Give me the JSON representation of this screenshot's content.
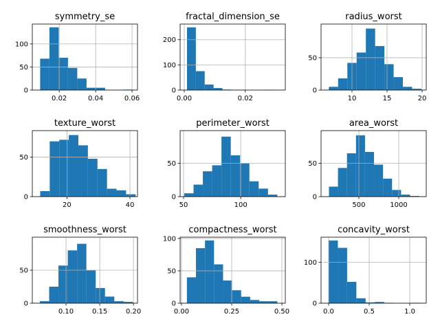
{
  "chart_data": [
    {
      "type": "histogram",
      "title": "symmetry_se",
      "color": "#1f77b4",
      "grid": true,
      "bins": [
        0.0095,
        0.0146,
        0.0197,
        0.0248,
        0.0299,
        0.035,
        0.0401,
        0.0452,
        0.0503,
        0.0554,
        0.0605
      ],
      "counts": [
        68,
        136,
        70,
        48,
        25,
        5,
        5,
        0,
        0,
        1
      ],
      "xlim": [
        0.0052,
        0.063
      ],
      "ylim": [
        0,
        143
      ],
      "xticks": [
        0.02,
        0.04,
        0.06
      ],
      "yticks": [
        0,
        50,
        100
      ]
    },
    {
      "type": "histogram",
      "title": "fractal_dimension_se",
      "color": "#1f77b4",
      "grid": true,
      "bins": [
        0.0009,
        0.0038,
        0.0067,
        0.0096,
        0.0125,
        0.0154,
        0.0183,
        0.0212,
        0.0241,
        0.027,
        0.0299
      ],
      "counts": [
        249,
        75,
        22,
        8,
        2,
        1,
        0,
        0,
        0,
        1
      ],
      "xlim": [
        -0.00135,
        0.0331
      ],
      "ylim": [
        0,
        262
      ],
      "xticks": [
        {
          "value": 0,
          "label": "0.00"
        },
        0.02
      ],
      "yticks": [
        0,
        100,
        200
      ]
    },
    {
      "type": "histogram",
      "title": "radius_worst",
      "color": "#1f77b4",
      "grid": true,
      "bins": [
        6.7,
        8.02,
        9.34,
        10.66,
        11.98,
        13.3,
        14.62,
        15.94,
        17.26,
        18.58,
        19.9
      ],
      "counts": [
        5,
        18,
        42,
        58,
        95,
        68,
        40,
        20,
        5,
        2
      ],
      "xlim": [
        5.59,
        20.59
      ],
      "ylim": [
        0,
        102
      ],
      "xticks": [
        10,
        15,
        20
      ],
      "yticks": [
        0,
        50
      ]
    },
    {
      "type": "histogram",
      "title": "texture_worst",
      "color": "#1f77b4",
      "grid": true,
      "bins": [
        11.5,
        14.53,
        17.56,
        20.59,
        23.62,
        26.65,
        29.68,
        32.71,
        35.74,
        38.77,
        41.8
      ],
      "counts": [
        7,
        70,
        72,
        78,
        65,
        48,
        35,
        10,
        8,
        3
      ],
      "xlim": [
        9.0,
        42.4
      ],
      "ylim": [
        0,
        83.6
      ],
      "xticks": [
        20,
        40
      ],
      "yticks": [
        0,
        50
      ]
    },
    {
      "type": "histogram",
      "title": "perimeter_worst",
      "color": "#1f77b4",
      "grid": true,
      "bins": [
        50.6,
        58.74,
        66.88,
        75.02,
        83.16,
        91.3,
        99.44,
        107.58,
        115.72,
        123.86,
        132
      ],
      "counts": [
        5,
        18,
        38,
        47,
        90,
        62,
        50,
        23,
        12,
        3
      ],
      "xlim": [
        47,
        139
      ],
      "ylim": [
        0,
        99
      ],
      "xticks": [
        50,
        100
      ],
      "yticks": [
        0,
        50
      ]
    },
    {
      "type": "histogram",
      "title": "area_worst",
      "color": "#1f77b4",
      "grid": true,
      "bins": [
        125,
        238,
        351,
        464,
        577,
        690,
        803,
        916,
        1029,
        1142,
        1255
      ],
      "counts": [
        15,
        43,
        65,
        92,
        67,
        48,
        27,
        10,
        3,
        1
      ],
      "xlim": [
        26,
        1345
      ],
      "ylim": [
        0,
        99
      ],
      "xticks": [
        500,
        1000
      ],
      "yticks": [
        0,
        50
      ]
    },
    {
      "type": "histogram",
      "title": "smoothness_worst",
      "color": "#1f77b4",
      "grid": true,
      "bins": [
        0.0612,
        0.075,
        0.0888,
        0.1026,
        0.1164,
        0.1302,
        0.144,
        0.1578,
        0.1716,
        0.1854,
        0.1992
      ],
      "counts": [
        3,
        25,
        57,
        80,
        90,
        50,
        23,
        10,
        3,
        2
      ],
      "xlim": [
        0.05,
        0.206
      ],
      "ylim": [
        0,
        100
      ],
      "xticks": [
        {
          "value": 0.1,
          "label": "0.10"
        },
        0.15,
        {
          "value": 0.2,
          "label": "0.20"
        }
      ],
      "yticks": [
        0,
        50
      ]
    },
    {
      "type": "histogram",
      "title": "compactness_worst",
      "color": "#1f77b4",
      "grid": true,
      "bins": [
        0.027,
        0.072,
        0.117,
        0.162,
        0.207,
        0.252,
        0.297,
        0.342,
        0.387,
        0.432,
        0.477
      ],
      "counts": [
        40,
        85,
        97,
        60,
        35,
        20,
        10,
        5,
        3,
        3
      ],
      "xlim": [
        -0.0068,
        0.517
      ],
      "ylim": [
        0,
        102
      ],
      "xticks": [
        {
          "value": 0,
          "label": "0.00"
        },
        0.25,
        {
          "value": 0.5,
          "label": "0.50"
        }
      ],
      "yticks": [
        0,
        50,
        100
      ]
    },
    {
      "type": "histogram",
      "title": "concavity_worst",
      "color": "#1f77b4",
      "grid": true,
      "bins": [
        0,
        0.114,
        0.228,
        0.342,
        0.456,
        0.57,
        0.684,
        0.798,
        0.912,
        1.026,
        1.14
      ],
      "counts": [
        153,
        135,
        52,
        12,
        2,
        3,
        1,
        0,
        0,
        1
      ],
      "xlim": [
        -0.093,
        1.203
      ],
      "ylim": [
        0,
        161
      ],
      "xticks": [
        {
          "value": 0,
          "label": "0.0"
        },
        0.5,
        {
          "value": 1,
          "label": "1.0"
        }
      ],
      "yticks": [
        0,
        100
      ]
    }
  ]
}
